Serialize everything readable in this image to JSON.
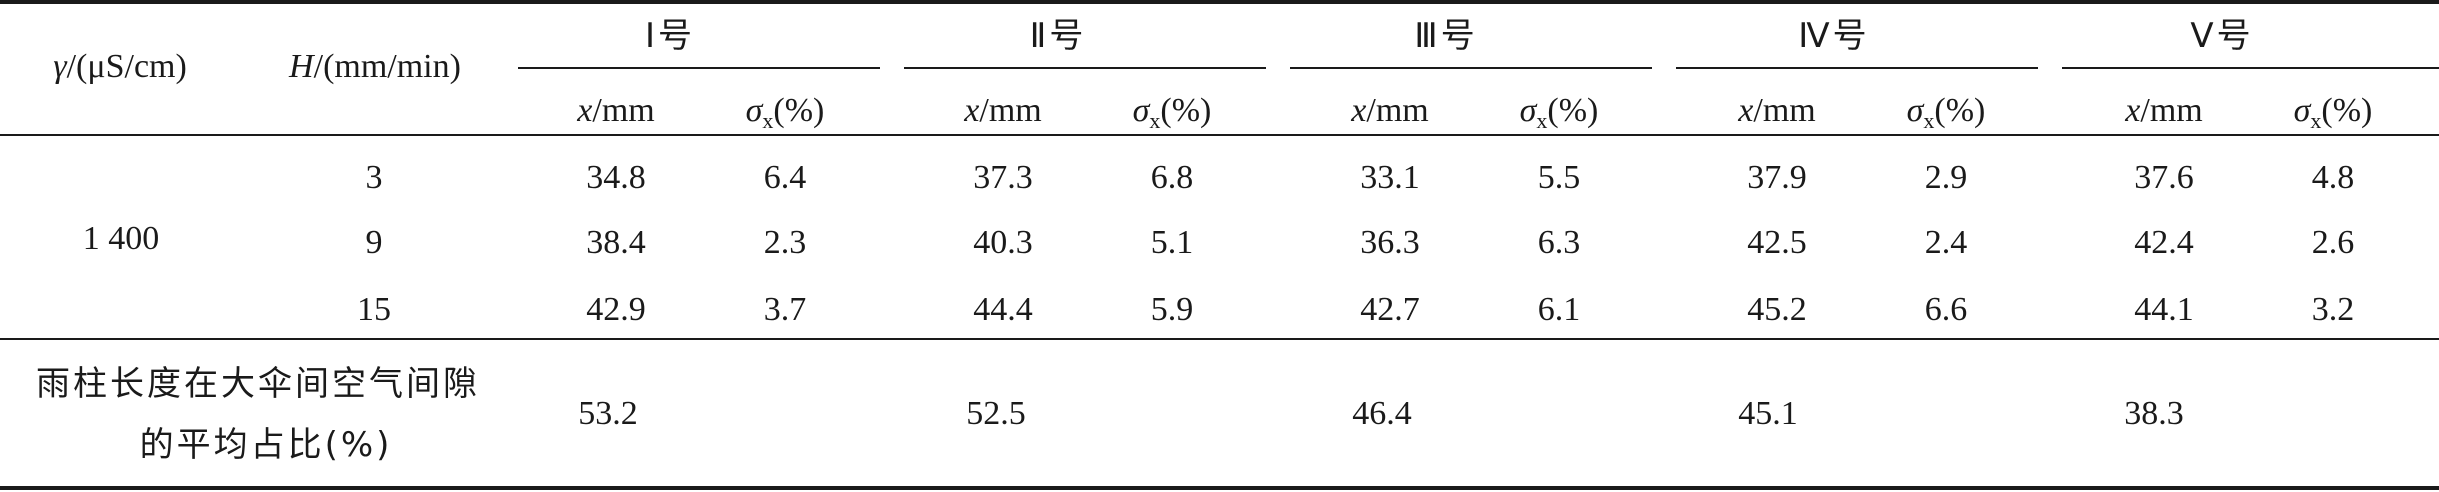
{
  "header": {
    "col1": {
      "symbol": "γ",
      "unit": "/(μS/cm)"
    },
    "col2": {
      "symbol": "H",
      "unit": "/(mm/min)"
    },
    "groups": [
      "Ⅰ号",
      "Ⅱ号",
      "Ⅲ号",
      "Ⅳ号",
      "Ⅴ号"
    ],
    "subcol_x": {
      "symbol": "x",
      "unit": "/mm"
    },
    "subcol_sigma": {
      "symbol": "σ",
      "sub": "x",
      "unit": "(%)"
    }
  },
  "body": {
    "conductivity": "1 400",
    "rows": [
      {
        "H": "3",
        "values": [
          "34.8",
          "6.4",
          "37.3",
          "6.8",
          "33.1",
          "5.5",
          "37.9",
          "2.9",
          "37.6",
          "4.8"
        ]
      },
      {
        "H": "9",
        "values": [
          "38.4",
          "2.3",
          "40.3",
          "5.1",
          "36.3",
          "6.3",
          "42.5",
          "2.4",
          "42.4",
          "2.6"
        ]
      },
      {
        "H": "15",
        "values": [
          "42.9",
          "3.7",
          "44.4",
          "5.9",
          "42.7",
          "6.1",
          "45.2",
          "6.6",
          "44.1",
          "3.2"
        ]
      }
    ]
  },
  "footer": {
    "label_line1": "雨柱长度在大伞间空气间隙",
    "label_line2": "的平均占比(%)",
    "values": [
      "53.2",
      "52.5",
      "46.4",
      "45.1",
      "38.3"
    ]
  }
}
